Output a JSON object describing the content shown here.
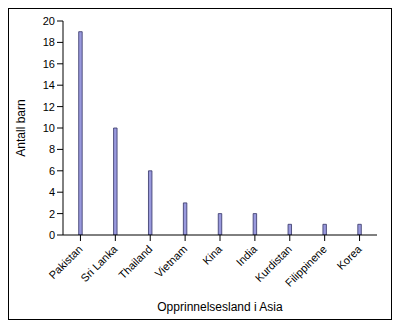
{
  "chart_data": {
    "type": "bar",
    "x_label": "Opprinnelsesland i Asia",
    "y_label": "Antall barn",
    "categories": [
      "Pakistan",
      "Sri Lanka",
      "Thailand",
      "Vietnam",
      "Kina",
      "India",
      "Kurdistan",
      "Filippinene",
      "Korea"
    ],
    "values": [
      19,
      10,
      6,
      3,
      2,
      2,
      1,
      1,
      1
    ],
    "color": "#9999dd",
    "ylim": [
      0,
      20
    ],
    "yticks": [
      0,
      2,
      4,
      6,
      8,
      10,
      12,
      14,
      16,
      18,
      20
    ],
    "grid": false
  }
}
